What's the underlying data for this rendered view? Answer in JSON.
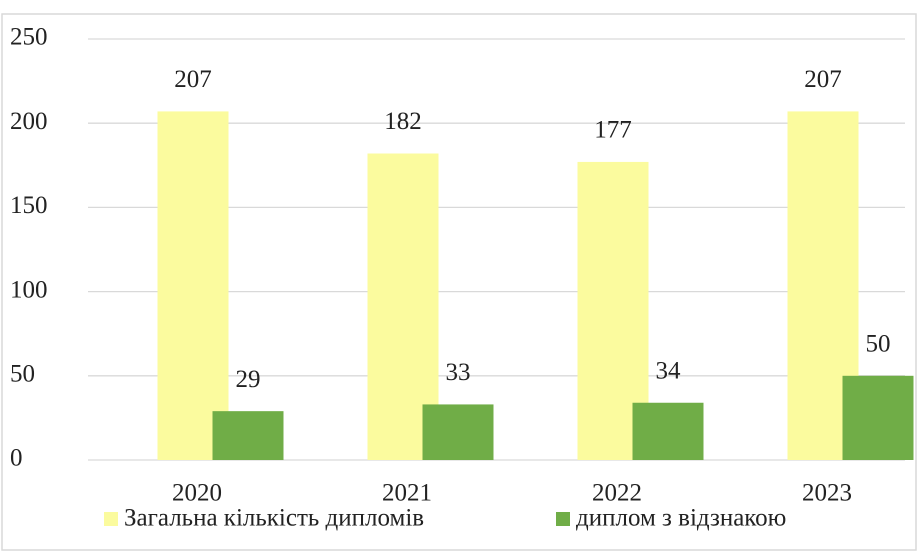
{
  "chart_data": {
    "type": "bar",
    "categories": [
      "2020",
      "2021",
      "2022",
      "2023"
    ],
    "series": [
      {
        "name": "Загальна кількість дипломів",
        "color": "#fbfb9e",
        "values": [
          207,
          182,
          177,
          207
        ]
      },
      {
        "name": "диплом з відзнакою",
        "color": "#70ad47",
        "values": [
          29,
          33,
          34,
          50
        ]
      }
    ],
    "ylim": [
      0,
      250
    ],
    "yticks": [
      0,
      50,
      100,
      150,
      200,
      250
    ],
    "grid": true,
    "legend": "bottom"
  }
}
